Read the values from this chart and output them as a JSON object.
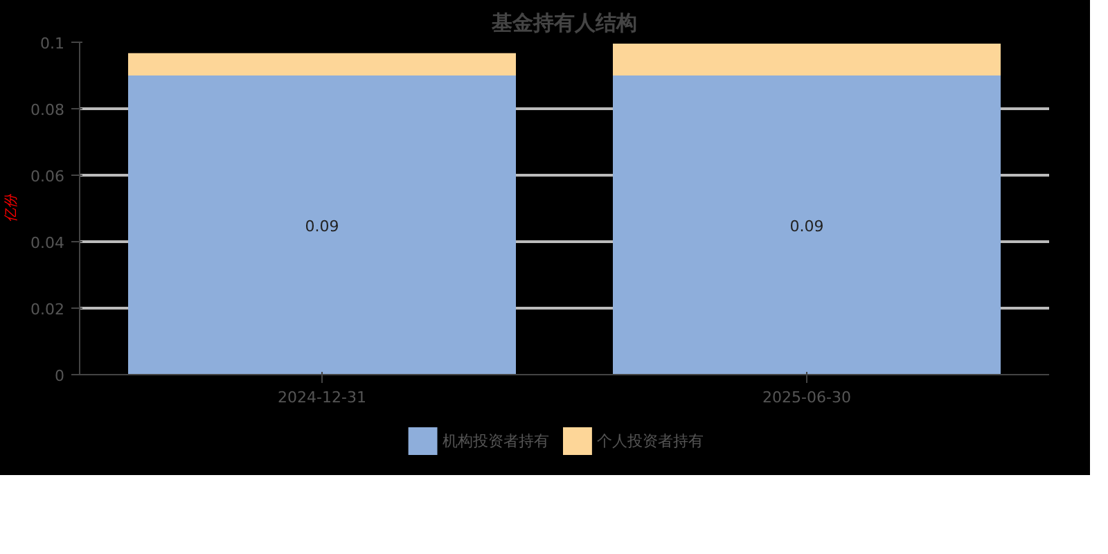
{
  "chart_data": {
    "type": "bar",
    "title": "基金持有人结构",
    "ylabel": "亿份",
    "categories": [
      "2024-12-31",
      "2025-06-30"
    ],
    "stacked": true,
    "series": [
      {
        "name": "机构投资者持有",
        "color": "#8eaedb",
        "values": [
          0.09,
          0.09
        ],
        "value_labels": [
          "0.09",
          "0.09"
        ]
      },
      {
        "name": "个人投资者持有",
        "color": "#fdd698",
        "values": [
          0.0067,
          0.0096
        ]
      }
    ],
    "ylim": [
      0,
      0.1
    ],
    "yticks": [
      0,
      0.02,
      0.04,
      0.06,
      0.08,
      0.1
    ],
    "grid": "y",
    "legend": "bottom"
  }
}
